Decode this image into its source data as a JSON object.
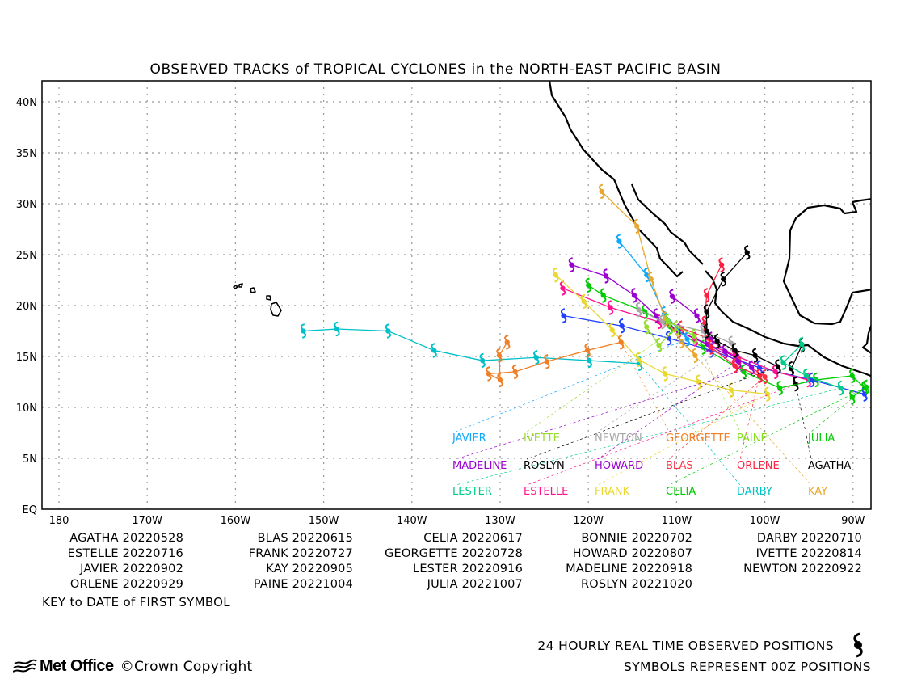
{
  "title": "OBSERVED TRACKS of TROPICAL CYCLONES in the NORTH-EAST PACIFIC BASIN",
  "map": {
    "lon_labels": [
      "180",
      "170W",
      "160W",
      "150W",
      "140W",
      "130W",
      "120W",
      "110W",
      "100W",
      "90W"
    ],
    "lon_values": [
      -180,
      -170,
      -160,
      -150,
      -140,
      -130,
      -120,
      -110,
      -100,
      -90
    ],
    "lat_labels": [
      "EQ",
      "5N",
      "10N",
      "15N",
      "20N",
      "25N",
      "30N",
      "35N",
      "40N"
    ],
    "lat_values": [
      0,
      5,
      10,
      15,
      20,
      25,
      30,
      35,
      40
    ],
    "lon_range": [
      -181.9,
      -88
    ],
    "lat_range": [
      0,
      42
    ],
    "grid": "dotted",
    "land_color": "#ffffff",
    "coast_color": "#000000"
  },
  "storms": [
    {
      "name": "AGATHA",
      "date": "20220528",
      "color": "#000000",
      "positions": [
        [
          -96.5,
          12.3
        ],
        [
          -97.0,
          13.8
        ],
        [
          -95.8,
          16.1
        ]
      ]
    },
    {
      "name": "BLAS",
      "date": "20220615",
      "color": "#ff3040",
      "positions": [
        [
          -100.0,
          13.0
        ],
        [
          -103.0,
          14.8
        ],
        [
          -106.5,
          16.8
        ],
        [
          -109.5,
          17.8
        ]
      ]
    },
    {
      "name": "CELIA",
      "date": "20220617",
      "color": "#00cc00",
      "positions": [
        [
          -88.7,
          11.9
        ],
        [
          -90.1,
          13.1
        ],
        [
          -94.2,
          12.7
        ],
        [
          -98.3,
          11.9
        ],
        [
          -102.4,
          13.5
        ],
        [
          -107.0,
          15.9
        ],
        [
          -110.7,
          17.9
        ],
        [
          -113.6,
          19.4
        ],
        [
          -118.3,
          21.0
        ],
        [
          -120.0,
          22.0
        ]
      ]
    },
    {
      "name": "BONNIE",
      "date": "20220702",
      "color": "#2040ff",
      "positions": [
        [
          -88.7,
          11.3
        ],
        [
          -94.7,
          12.7
        ],
        [
          -100.6,
          13.9
        ],
        [
          -106.1,
          15.6
        ],
        [
          -110.9,
          16.8
        ],
        [
          -116.2,
          18.0
        ],
        [
          -122.8,
          19.0
        ]
      ]
    },
    {
      "name": "DARBY",
      "date": "20220710",
      "color": "#00c0c8",
      "positions": [
        [
          -114.2,
          14.3
        ],
        [
          -119.9,
          14.6
        ],
        [
          -125.9,
          14.9
        ],
        [
          -132.0,
          14.6
        ],
        [
          -137.5,
          15.6
        ],
        [
          -142.7,
          17.5
        ],
        [
          -148.5,
          17.7
        ],
        [
          -152.3,
          17.5
        ]
      ]
    },
    {
      "name": "ESTELLE",
      "date": "20220716",
      "color": "#ff1090",
      "positions": [
        [
          -95.1,
          12.7
        ],
        [
          -98.8,
          13.5
        ],
        [
          -103.4,
          15.1
        ],
        [
          -107.9,
          16.7
        ],
        [
          -112.0,
          18.4
        ],
        [
          -117.5,
          19.8
        ],
        [
          -122.9,
          21.7
        ]
      ]
    },
    {
      "name": "FRANK",
      "date": "20220727",
      "color": "#e8d830",
      "positions": [
        [
          -99.7,
          11.3
        ],
        [
          -103.8,
          11.7
        ],
        [
          -107.5,
          12.5
        ],
        [
          -111.3,
          13.3
        ],
        [
          -114.3,
          14.7
        ],
        [
          -117.3,
          17.6
        ],
        [
          -120.5,
          20.4
        ],
        [
          -123.7,
          23.0
        ]
      ]
    },
    {
      "name": "GEORGETTE",
      "date": "20220728",
      "color": "#f08028",
      "positions": [
        [
          -116.3,
          16.4
        ],
        [
          -120.1,
          15.6
        ],
        [
          -124.7,
          14.5
        ],
        [
          -128.3,
          13.5
        ],
        [
          -131.3,
          13.3
        ],
        [
          -130.0,
          12.7
        ],
        [
          -130.1,
          15.1
        ],
        [
          -129.2,
          16.4
        ]
      ]
    },
    {
      "name": "HOWARD",
      "date": "20220807",
      "color": "#9a00d0",
      "positions": [
        [
          -103.0,
          14.5
        ],
        [
          -106.5,
          16.2
        ],
        [
          -109.8,
          17.5
        ],
        [
          -112.3,
          19.0
        ],
        [
          -114.8,
          21.0
        ],
        [
          -118.0,
          22.9
        ],
        [
          -121.9,
          24.0
        ]
      ]
    },
    {
      "name": "IVETTE",
      "date": "20220814",
      "color": "#99dd33",
      "positions": [
        [
          -110.0,
          17.8
        ],
        [
          -112.0,
          16.1
        ],
        [
          -113.4,
          17.9
        ]
      ]
    },
    {
      "name": "JAVIER",
      "date": "20220902",
      "color": "#10a8ff",
      "positions": [
        [
          -108.8,
          16.7
        ],
        [
          -111.4,
          19.2
        ],
        [
          -113.4,
          23.0
        ],
        [
          -116.5,
          26.3
        ]
      ]
    },
    {
      "name": "KAY",
      "date": "20220905",
      "color": "#e8a830",
      "positions": [
        [
          -107.9,
          15.1
        ],
        [
          -109.5,
          16.5
        ],
        [
          -111.3,
          18.7
        ],
        [
          -112.9,
          22.6
        ],
        [
          -114.5,
          27.8
        ],
        [
          -118.5,
          31.2
        ]
      ]
    },
    {
      "name": "LESTER",
      "date": "20220916",
      "color": "#00cc88",
      "positions": [
        [
          -91.4,
          11.9
        ],
        [
          -95.3,
          13.1
        ],
        [
          -97.9,
          14.4
        ],
        [
          -95.8,
          16.2
        ]
      ]
    },
    {
      "name": "MADELINE",
      "date": "20220918",
      "color": "#9a00d0",
      "positions": [
        [
          -101.5,
          13.9
        ],
        [
          -104.5,
          15.5
        ],
        [
          -106.1,
          16.7
        ],
        [
          -107.7,
          19.0
        ],
        [
          -110.5,
          20.9
        ]
      ]
    },
    {
      "name": "NEWTON",
      "date": "20220922",
      "color": "#a8a8a8",
      "positions": [
        [
          -103.8,
          16.3
        ],
        [
          -107.0,
          17.5
        ],
        [
          -111.6,
          18.4
        ],
        [
          -114.3,
          19.6
        ]
      ]
    },
    {
      "name": "ORLENE",
      "date": "20220929",
      "color": "#ff2040",
      "positions": [
        [
          -100.6,
          13.1
        ],
        [
          -103.4,
          14.1
        ],
        [
          -106.1,
          15.9
        ],
        [
          -106.8,
          18.3
        ],
        [
          -106.6,
          21.0
        ],
        [
          -104.9,
          24.0
        ]
      ]
    },
    {
      "name": "PAINE",
      "date": "20221004",
      "color": "#88dd22",
      "positions": [
        [
          -108.0,
          17.0
        ],
        [
          -111.0,
          18.5
        ]
      ]
    },
    {
      "name": "JULIA",
      "date": "20221007",
      "color": "#00cc00",
      "positions": [
        [
          -88.5,
          12.0
        ],
        [
          -90.1,
          11.0
        ]
      ]
    },
    {
      "name": "ROSLYN",
      "date": "20221020",
      "color": "#000000",
      "positions": [
        [
          -98.5,
          14.0
        ],
        [
          -101.1,
          15.1
        ],
        [
          -103.4,
          15.6
        ],
        [
          -105.4,
          16.5
        ],
        [
          -106.6,
          17.5
        ],
        [
          -106.6,
          19.4
        ],
        [
          -104.7,
          22.6
        ],
        [
          -102.0,
          25.2
        ]
      ]
    }
  ],
  "key_note": "KEY to DATE of FIRST SYMBOL",
  "legend": {
    "line1": "24 HOURLY REAL TIME OBSERVED POSITIONS",
    "line2": "SYMBOLS REPRESENT 00Z POSITIONS",
    "symbol_icon": "tropical-cyclone-symbol"
  },
  "footer": {
    "logo_text": "Met Office",
    "copyright": "©Crown Copyright"
  }
}
